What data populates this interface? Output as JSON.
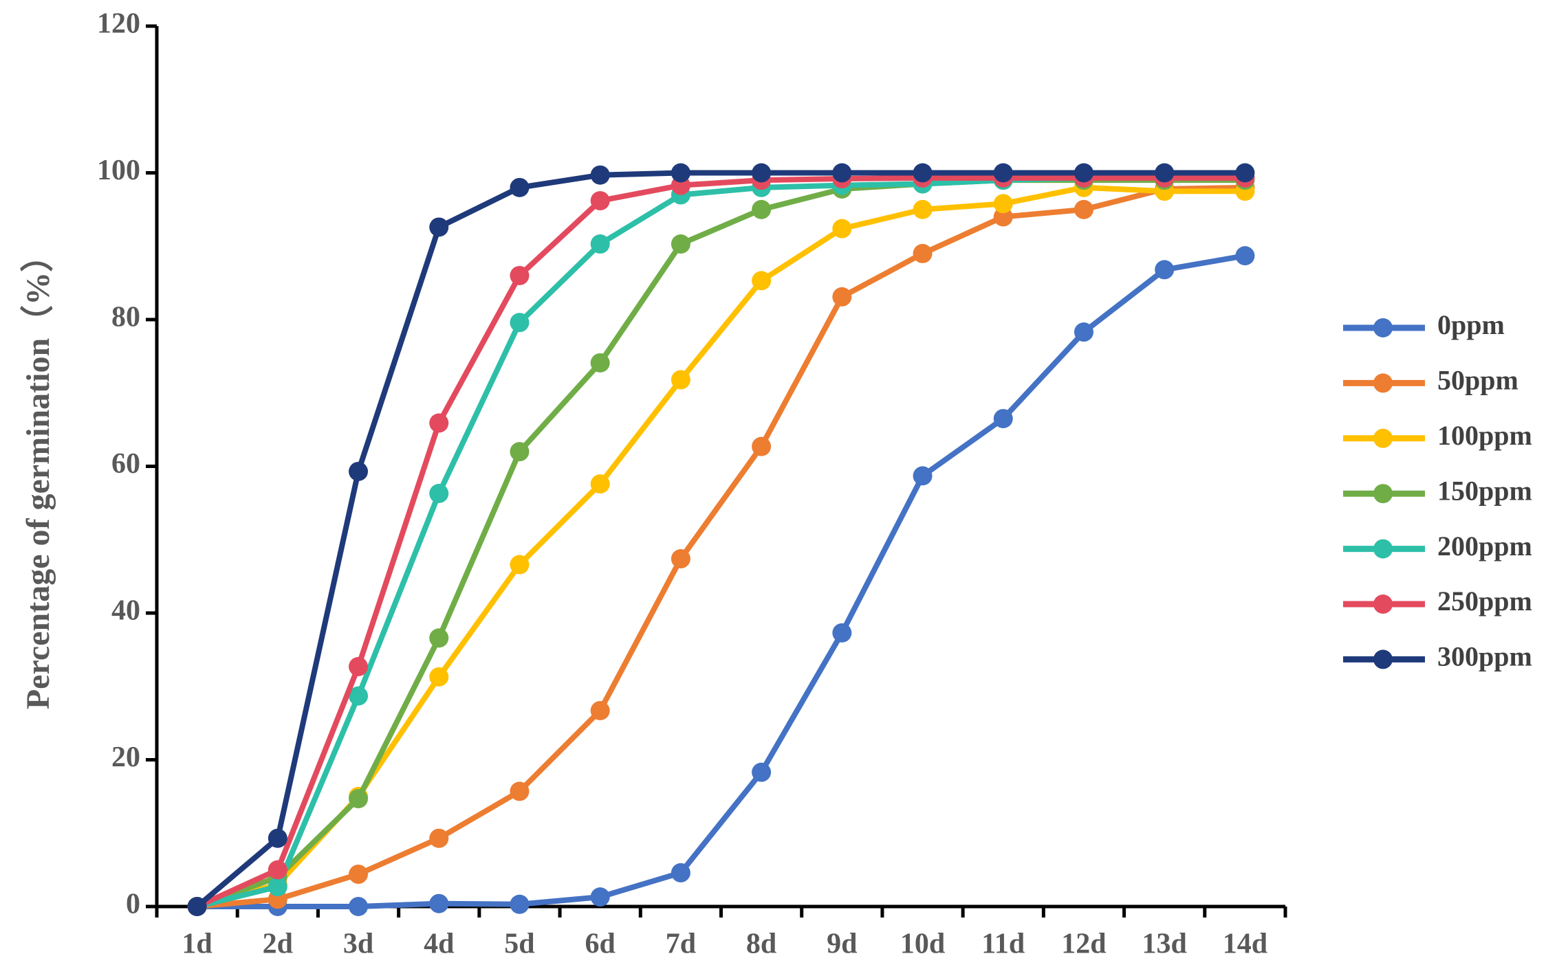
{
  "chart_data": {
    "type": "line",
    "y_label": "Percentage of germination（%）",
    "categories": [
      "1d",
      "2d",
      "3d",
      "4d",
      "5d",
      "6d",
      "7d",
      "8d",
      "9d",
      "10d",
      "11d",
      "12d",
      "13d",
      "14d"
    ],
    "ylim": [
      0,
      120
    ],
    "yticks": [
      0,
      20,
      40,
      60,
      80,
      100,
      120
    ],
    "legend_position": "right",
    "series": [
      {
        "name": "0ppm",
        "color": "#4472c4",
        "values": [
          0,
          0,
          0,
          0.4,
          0.3,
          1.3,
          4.6,
          18.3,
          37.3,
          58.7,
          66.5,
          78.3,
          86.8,
          88.7
        ]
      },
      {
        "name": "50ppm",
        "color": "#ed7d31",
        "values": [
          0,
          1,
          4.4,
          9.3,
          15.7,
          26.7,
          47.4,
          62.7,
          83.1,
          89,
          94,
          95,
          97.8,
          98
        ]
      },
      {
        "name": "100ppm",
        "color": "#ffc000",
        "values": [
          0,
          3,
          15,
          31.3,
          46.6,
          57.6,
          71.8,
          85.3,
          92.4,
          95,
          95.8,
          98,
          97.5,
          97.5
        ]
      },
      {
        "name": "150ppm",
        "color": "#70ad47",
        "values": [
          0,
          4,
          14.7,
          36.6,
          62,
          74.1,
          90.3,
          95,
          97.8,
          98.5,
          99,
          99,
          99,
          99
        ]
      },
      {
        "name": "200ppm",
        "color": "#2dbfa8",
        "values": [
          0,
          2.7,
          28.7,
          56.3,
          79.6,
          90.3,
          97,
          98,
          98.3,
          98.5,
          99,
          99.3,
          99.3,
          99.3
        ]
      },
      {
        "name": "250ppm",
        "color": "#e34a5e",
        "values": [
          0,
          5,
          32.7,
          65.9,
          86,
          96.2,
          98.3,
          99,
          99.2,
          99.3,
          99.3,
          99.3,
          99.3,
          99.3
        ]
      },
      {
        "name": "300ppm",
        "color": "#1f3a7a",
        "values": [
          0,
          9.3,
          59.3,
          92.6,
          98,
          99.7,
          100,
          100,
          100,
          100,
          100,
          100,
          100,
          100
        ]
      }
    ]
  }
}
